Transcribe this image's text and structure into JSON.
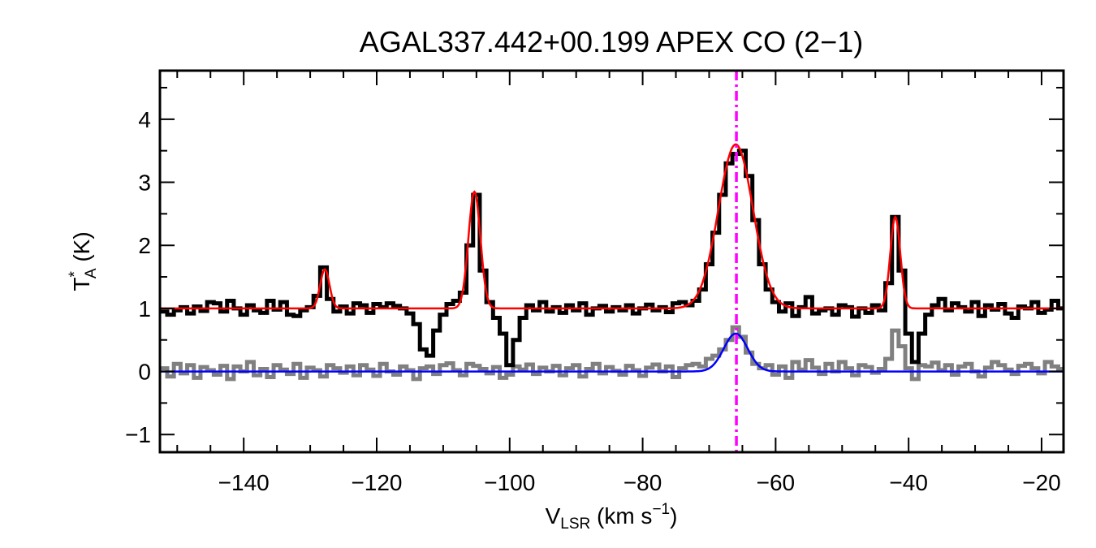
{
  "chart_data": {
    "type": "line",
    "title": "AGAL337.442+00.199  APEX CO (2−1)",
    "xlabel": {
      "main": "V",
      "sub": "LSR",
      "rest": " (km s",
      "sup": "−1",
      "end": ")"
    },
    "ylabel": {
      "main": "T",
      "sup": "*",
      "sub": "A",
      "rest": " (K)"
    },
    "xlim": [
      -152.6,
      -16.7
    ],
    "ylim": [
      -1.28,
      4.77
    ],
    "xticks": [
      -140,
      -120,
      -100,
      -80,
      -60,
      -40,
      -20
    ],
    "xtick_labels": [
      "−140",
      "−120",
      "−100",
      "−80",
      "−60",
      "−40",
      "−20"
    ],
    "yticks": [
      -1,
      0,
      1,
      2,
      3,
      4
    ],
    "ytick_labels": [
      "−1",
      "0",
      "1",
      "2",
      "3",
      "4"
    ],
    "grid": false,
    "x_start": -152,
    "x_step": 1,
    "series": [
      {
        "color": "#000000",
        "style": "histogram",
        "values": [
          0.95,
          0.9,
          0.97,
          1.02,
          0.92,
          1.03,
          0.96,
          1.1,
          1.08,
          0.95,
          1.12,
          1.0,
          0.9,
          1.05,
          0.97,
          0.93,
          1.12,
          0.98,
          1.1,
          0.9,
          0.88,
          0.97,
          1.02,
          1.2,
          1.65,
          1.15,
          0.95,
          1.03,
          0.92,
          1.08,
          1.05,
          0.93,
          1.07,
          1.02,
          1.08,
          1.04,
          1.0,
          0.92,
          0.75,
          0.35,
          0.25,
          0.65,
          0.9,
          1.07,
          1.12,
          1.25,
          2.0,
          2.8,
          1.6,
          1.1,
          0.85,
          0.6,
          0.1,
          0.5,
          0.85,
          1.05,
          0.97,
          1.1,
          0.95,
          1.02,
          0.93,
          1.05,
          0.97,
          1.08,
          0.9,
          1.0,
          1.04,
          0.95,
          1.02,
          0.97,
          1.05,
          0.92,
          1.0,
          1.06,
          0.97,
          1.02,
          0.94,
          1.08,
          1.1,
          1.05,
          1.12,
          1.3,
          1.7,
          2.2,
          2.8,
          3.3,
          3.45,
          3.5,
          3.1,
          2.4,
          1.7,
          1.3,
          1.1,
          0.95,
          1.08,
          0.88,
          1.02,
          1.18,
          0.92,
          0.97,
          1.0,
          0.9,
          1.05,
          1.02,
          0.87,
          1.0,
          0.93,
          1.05,
          0.97,
          1.4,
          2.45,
          1.6,
          0.6,
          0.15,
          0.6,
          0.9,
          1.05,
          1.15,
          0.97,
          1.08,
          1.02,
          0.95,
          1.1,
          0.88,
          1.05,
          0.98,
          1.07,
          0.92,
          0.85,
          1.03,
          1.0,
          1.1,
          0.93,
          0.98,
          1.12,
          1.0
        ]
      },
      {
        "color": "#808080",
        "style": "histogram",
        "values": [
          0.05,
          -0.08,
          0.12,
          -0.03,
          0.1,
          -0.1,
          0.07,
          0.02,
          -0.05,
          0.09,
          -0.12,
          0.08,
          0.0,
          0.15,
          -0.06,
          0.04,
          -0.09,
          0.1,
          0.03,
          -0.04,
          0.12,
          -0.1,
          0.06,
          0.02,
          -0.08,
          0.1,
          0.05,
          -0.02,
          0.08,
          -0.06,
          0.1,
          0.03,
          -0.07,
          0.12,
          0.0,
          -0.05,
          0.08,
          0.02,
          -0.12,
          0.05,
          0.08,
          -0.04,
          0.1,
          0.13,
          0.02,
          -0.06,
          0.12,
          0.09,
          0.04,
          -0.03,
          0.07,
          -0.1,
          -0.05,
          0.08,
          0.03,
          0.11,
          -0.04,
          0.06,
          0.0,
          0.09,
          -0.06,
          0.05,
          0.1,
          -0.08,
          0.04,
          0.12,
          -0.03,
          0.07,
          0.01,
          -0.05,
          0.09,
          0.02,
          -0.07,
          0.06,
          0.11,
          0.0,
          0.08,
          -0.09,
          0.05,
          0.1,
          0.12,
          0.08,
          0.2,
          0.25,
          0.35,
          0.5,
          0.7,
          0.55,
          0.3,
          0.12,
          0.05,
          0.1,
          -0.05,
          0.08,
          -0.1,
          0.15,
          0.03,
          0.18,
          0.06,
          -0.04,
          0.12,
          0.0,
          0.15,
          0.05,
          -0.06,
          0.1,
          0.07,
          -0.02,
          0.04,
          0.2,
          0.65,
          0.4,
          0.05,
          -0.12,
          0.1,
          0.08,
          0.14,
          0.02,
          0.1,
          -0.05,
          0.08,
          0.12,
          0.0,
          -0.08,
          0.06,
          0.15,
          0.1,
          0.03,
          -0.04,
          0.09,
          0.12,
          0.05,
          -0.03,
          0.15,
          0.08,
          0.04
        ]
      }
    ],
    "fits": [
      {
        "color": "#ff0000",
        "baseline": 1,
        "components": [
          {
            "center": -127.8,
            "amplitude": 0.62,
            "sigma": 0.7
          },
          {
            "center": -105.3,
            "amplitude": 1.85,
            "sigma": 0.9
          },
          {
            "center": -66.0,
            "amplitude": 2.6,
            "sigma": 2.6
          },
          {
            "center": -42.0,
            "amplitude": 1.45,
            "sigma": 0.75
          }
        ]
      },
      {
        "color": "#0000ff",
        "baseline": 0,
        "components": [
          {
            "center": -66.0,
            "amplitude": 0.6,
            "sigma": 1.8
          }
        ]
      }
    ],
    "vline": {
      "x": -65.9,
      "color": "#ff00ff",
      "style": "dash-dot"
    }
  }
}
